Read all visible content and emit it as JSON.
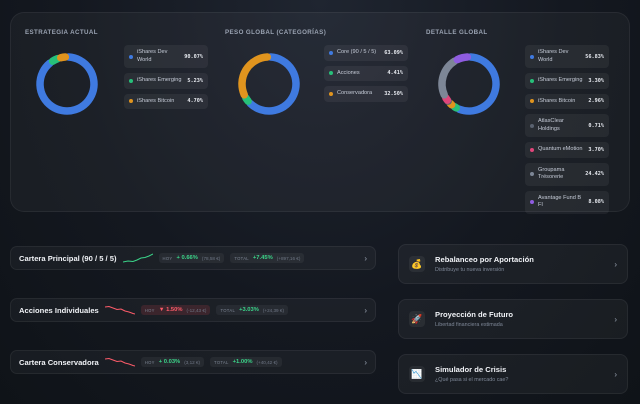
{
  "colors": {
    "blue": "#3f7ae0",
    "orange": "#e0941e",
    "green": "#27c07a",
    "gray": "#7d8696",
    "purple": "#8f5ce0",
    "pink": "#e0457a",
    "dark": "#5a6270"
  },
  "sections": [
    {
      "title": "ESTRATEGIA ACTUAL",
      "items": [
        {
          "name": "iShares Dev World",
          "pct": "90.07%",
          "color": "#3f7ae0"
        },
        {
          "name": "iShares Emerging",
          "pct": "5.23%",
          "color": "#27c07a"
        },
        {
          "name": "iShares Bitcoin",
          "pct": "4.70%",
          "color": "#e0941e"
        }
      ]
    },
    {
      "title": "PESO GLOBAL (CATEGORÍAS)",
      "items": [
        {
          "name": "Core (90 / 5 / 5)",
          "pct": "63.09%",
          "color": "#3f7ae0"
        },
        {
          "name": "Acciones",
          "pct": "4.41%",
          "color": "#27c07a"
        },
        {
          "name": "Conservadora",
          "pct": "32.50%",
          "color": "#e0941e"
        }
      ]
    },
    {
      "title": "DETALLE GLOBAL",
      "items": [
        {
          "name": "iShares Dev World",
          "pct": "56.83%",
          "color": "#3f7ae0"
        },
        {
          "name": "iShares Emerging",
          "pct": "3.30%",
          "color": "#27c07a"
        },
        {
          "name": "iShares Bitcoin",
          "pct": "2.96%",
          "color": "#e0941e"
        },
        {
          "name": "AtlasClear Holdings",
          "pct": "0.71%",
          "color": "#5a6270"
        },
        {
          "name": "Quantum eMotion",
          "pct": "3.70%",
          "color": "#e0457a"
        },
        {
          "name": "Groupama Trésorerie",
          "pct": "24.42%",
          "color": "#7d8696"
        },
        {
          "name": "Avantage Fund B FI",
          "pct": "8.08%",
          "color": "#8f5ce0"
        }
      ]
    }
  ],
  "portfolios": [
    {
      "name": "Cartera Principal (90 / 5 / 5)",
      "trend": "up",
      "hoy_tag": "HOY",
      "hoy_value": "+ 0.66%",
      "hoy_sub": "(78,58 €)",
      "hoy_positive": true,
      "total_tag": "TOTAL",
      "total_value": "+7.45%",
      "total_sub": "(+897,16 €)"
    },
    {
      "name": "Acciones Individuales",
      "trend": "down",
      "hoy_tag": "HOY",
      "hoy_value": "▼ 1.50%",
      "hoy_sub": "(-12,43 €)",
      "hoy_positive": false,
      "total_tag": "TOTAL",
      "total_value": "+3.03%",
      "total_sub": "(+24,39 €)"
    },
    {
      "name": "Cartera Conservadora",
      "trend": "down",
      "hoy_tag": "HOY",
      "hoy_value": "+ 0.03%",
      "hoy_sub": "(3,12 €)",
      "hoy_positive": true,
      "total_tag": "TOTAL",
      "total_value": "+1.00%",
      "total_sub": "(+40,42 €)"
    }
  ],
  "tools": [
    {
      "title": "Rebalanceo por Aportación",
      "subtitle": "Distribuye tu nueva inversión",
      "icon": "money-bag-icon",
      "glyph": "💰"
    },
    {
      "title": "Proyección de Futuro",
      "subtitle": "Libertad financiera estimada",
      "icon": "rocket-icon",
      "glyph": "🚀"
    },
    {
      "title": "Simulador de Crisis",
      "subtitle": "¿Qué pasa si el mercado cae?",
      "icon": "chart-down-icon",
      "glyph": "📉"
    }
  ],
  "chevron": "›"
}
